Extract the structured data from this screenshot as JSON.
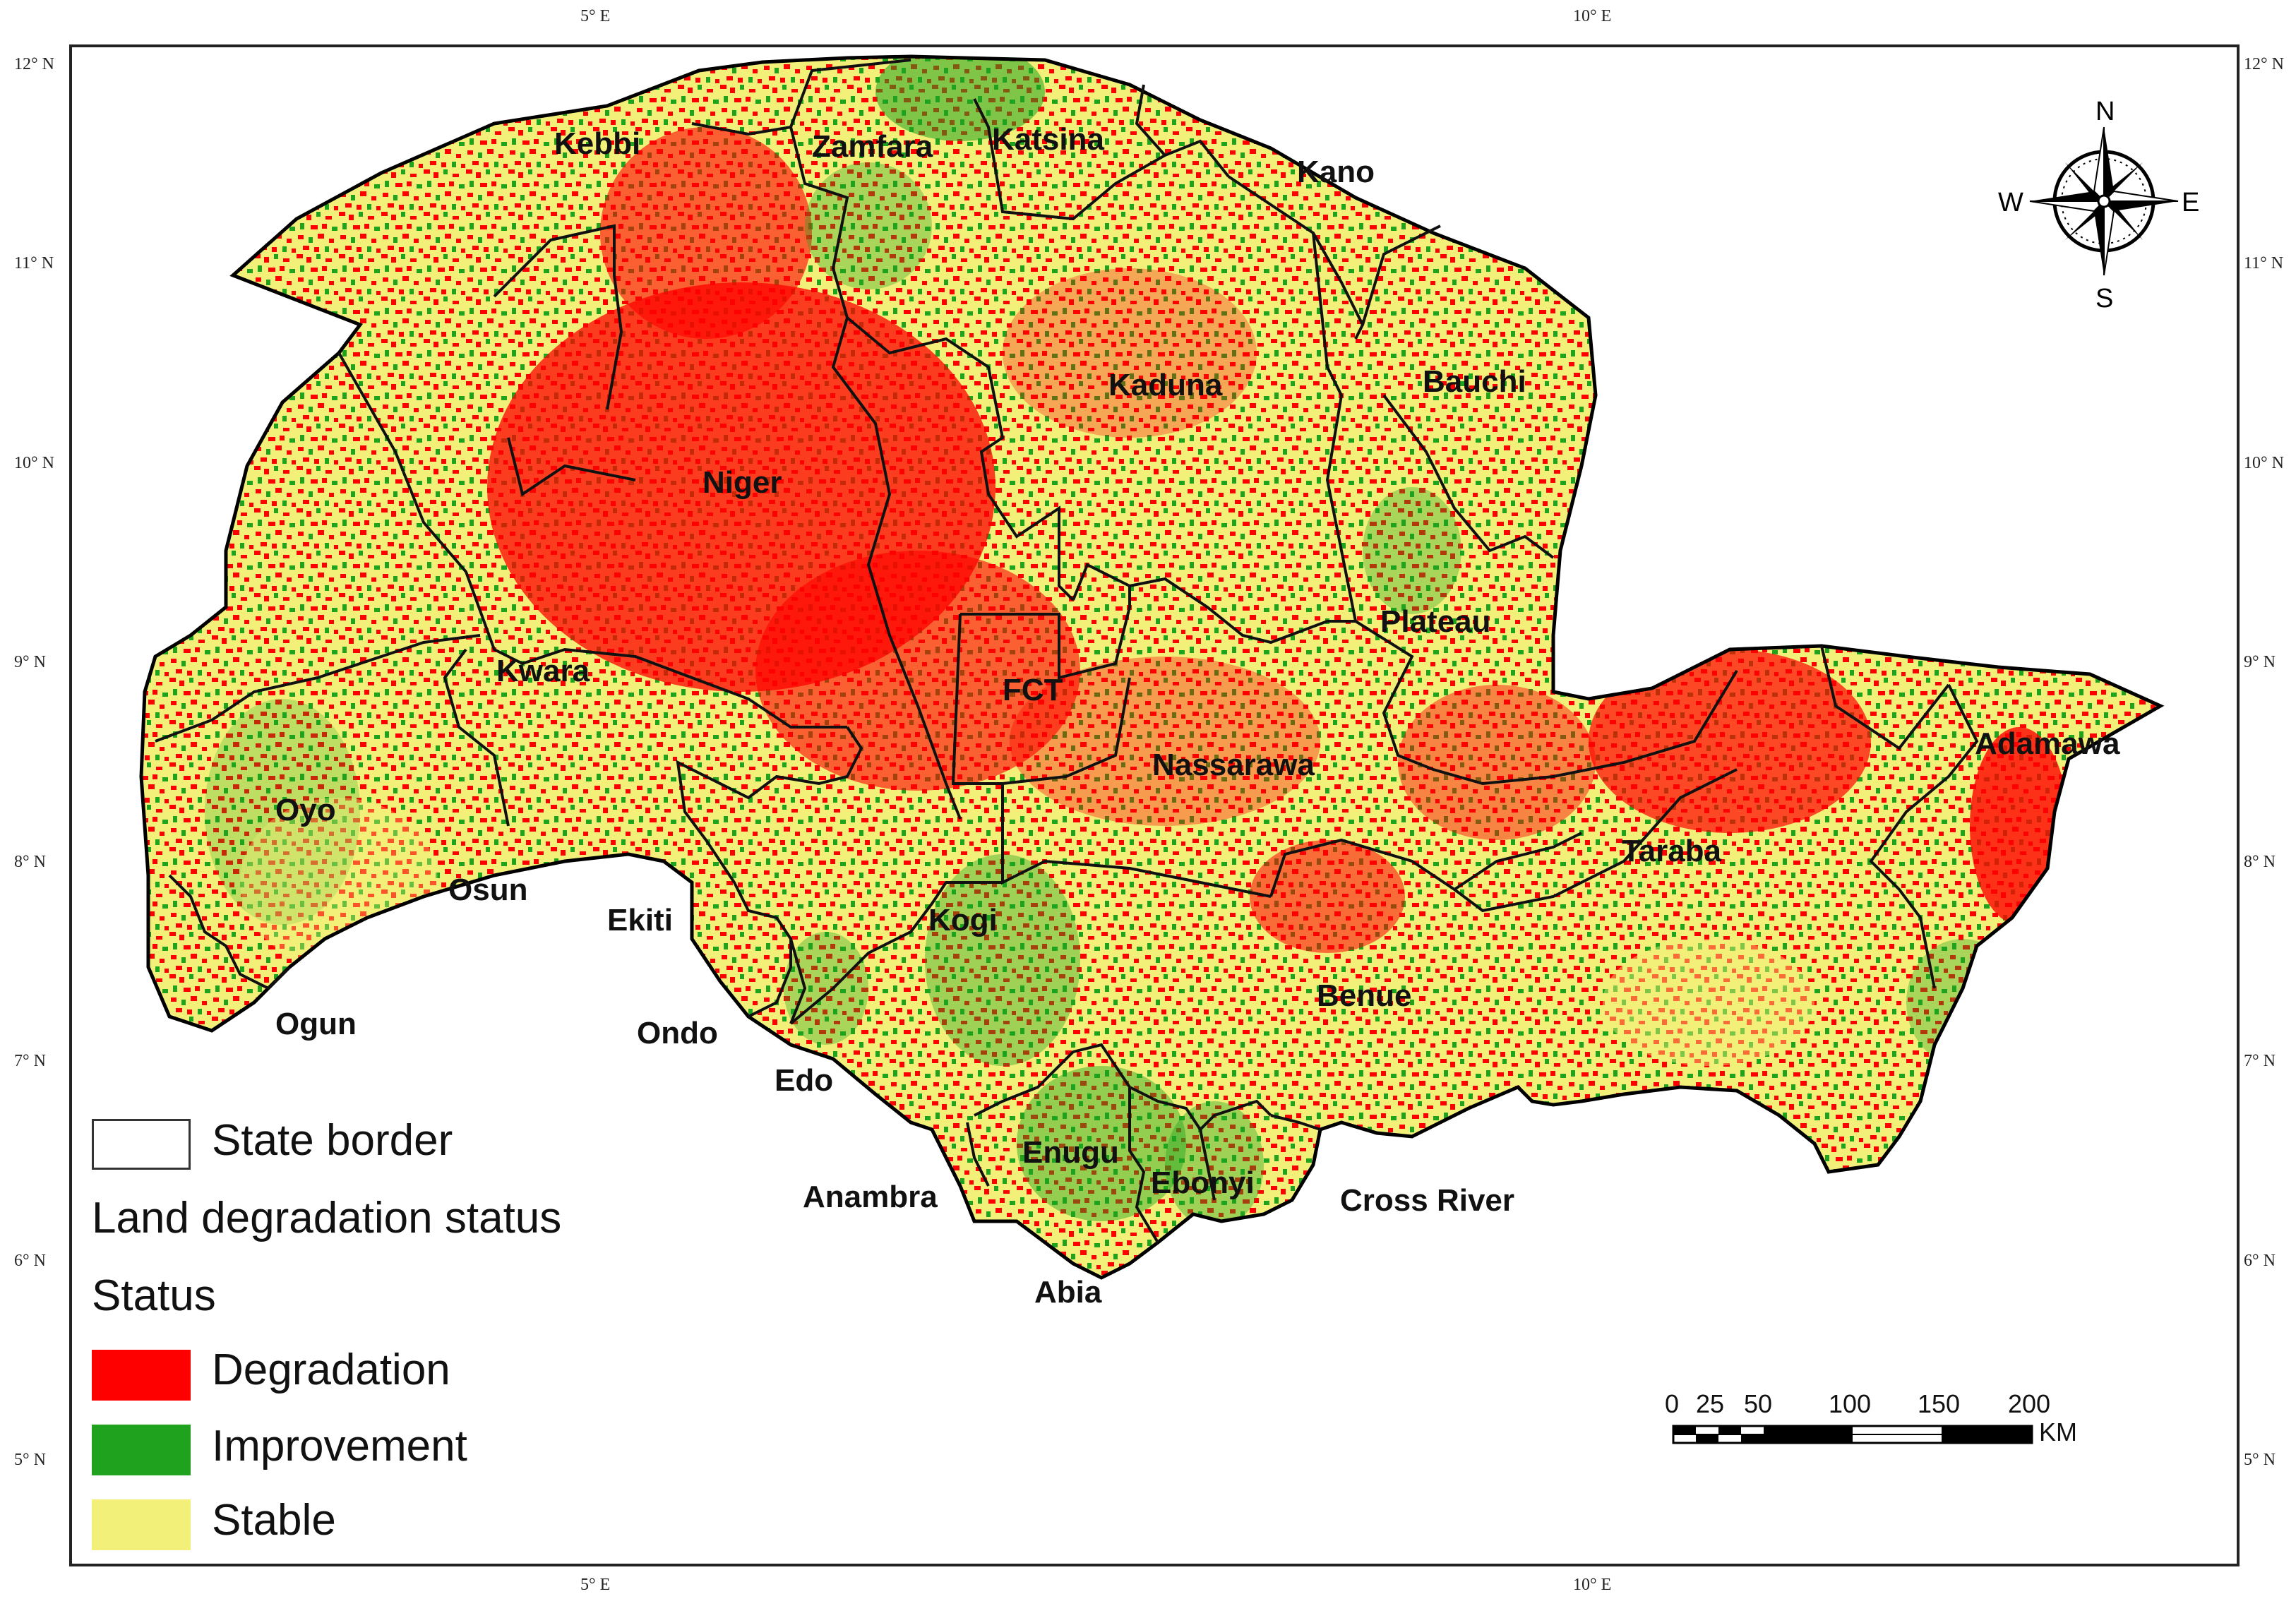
{
  "graticule": {
    "top": [
      "5° E",
      "10° E"
    ],
    "bottom": [
      "5° E",
      "10° E"
    ],
    "left": [
      "12° N",
      "11° N",
      "10° N",
      "9° N",
      "8° N",
      "7° N",
      "6° N",
      "5° N"
    ],
    "right": [
      "12° N",
      "11° N",
      "10° N",
      "9° N",
      "8° N",
      "7° N",
      "6° N",
      "5° N"
    ]
  },
  "states": [
    "Kebbi",
    "Zamfara",
    "Katsina",
    "Kano",
    "Kaduna",
    "Bauchi",
    "Niger",
    "Plateau",
    "Kwara",
    "FCT",
    "Nassarawa",
    "Adamawa",
    "Oyo",
    "Osun",
    "Ekiti",
    "Kogi",
    "Taraba",
    "Benue",
    "Ogun",
    "Ondo",
    "Edo",
    "Enugu",
    "Anambra",
    "Ebonyi",
    "Cross River",
    "Abia"
  ],
  "compass": {
    "n": "N",
    "s": "S",
    "e": "E",
    "w": "W"
  },
  "legend": {
    "border_label": "State border",
    "title": "Land degradation status",
    "subtitle": "Status",
    "classes": [
      {
        "label": "Degradation",
        "color": "#ff0000"
      },
      {
        "label": "Improvement",
        "color": "#1fa31f"
      },
      {
        "label": "Stable",
        "color": "#f3f07a"
      }
    ]
  },
  "scale_bar": {
    "labels": [
      "0",
      "25",
      "50",
      "100",
      "150",
      "200"
    ],
    "unit": "KM"
  },
  "colors": {
    "degradation": "#ff0000",
    "improvement": "#1fa31f",
    "stable": "#f3f07a",
    "border": "#000000"
  }
}
